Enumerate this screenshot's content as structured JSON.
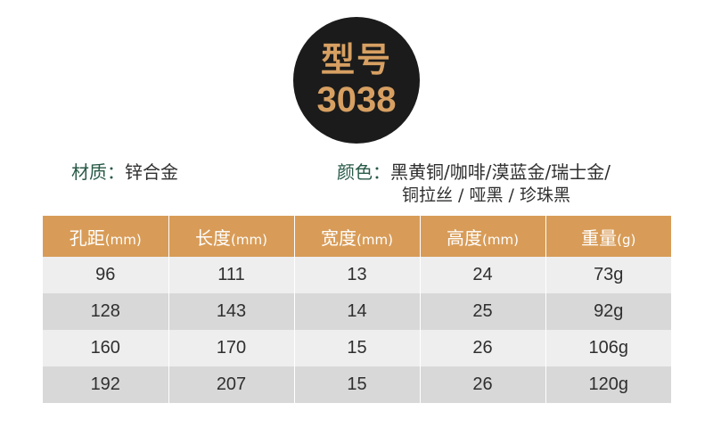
{
  "badge": {
    "title": "型号",
    "number": "3038"
  },
  "specs": {
    "material_label": "材质：",
    "material_value": "锌合金",
    "color_label": "颜色：",
    "color_value_line1": "黑黄铜/咖啡/漠蓝金/瑞士金/",
    "color_value_line2": "铜拉丝 / 哑黑 / 珍珠黑"
  },
  "table": {
    "headers": [
      {
        "name": "孔距",
        "unit": "(mm)"
      },
      {
        "name": "长度",
        "unit": "(mm)"
      },
      {
        "name": "宽度",
        "unit": "(mm)"
      },
      {
        "name": "高度",
        "unit": "(mm)"
      },
      {
        "name": "重量",
        "unit": "(g)"
      }
    ],
    "rows": [
      [
        "96",
        "111",
        "13",
        "24",
        "73g"
      ],
      [
        "128",
        "143",
        "14",
        "25",
        "92g"
      ],
      [
        "160",
        "170",
        "15",
        "26",
        "106g"
      ],
      [
        "192",
        "207",
        "15",
        "26",
        "120g"
      ]
    ]
  },
  "colors": {
    "badge_bg": "#1b1b1b",
    "accent": "#d7a062",
    "header_bg": "#d89c58",
    "label_text": "#285a47"
  }
}
